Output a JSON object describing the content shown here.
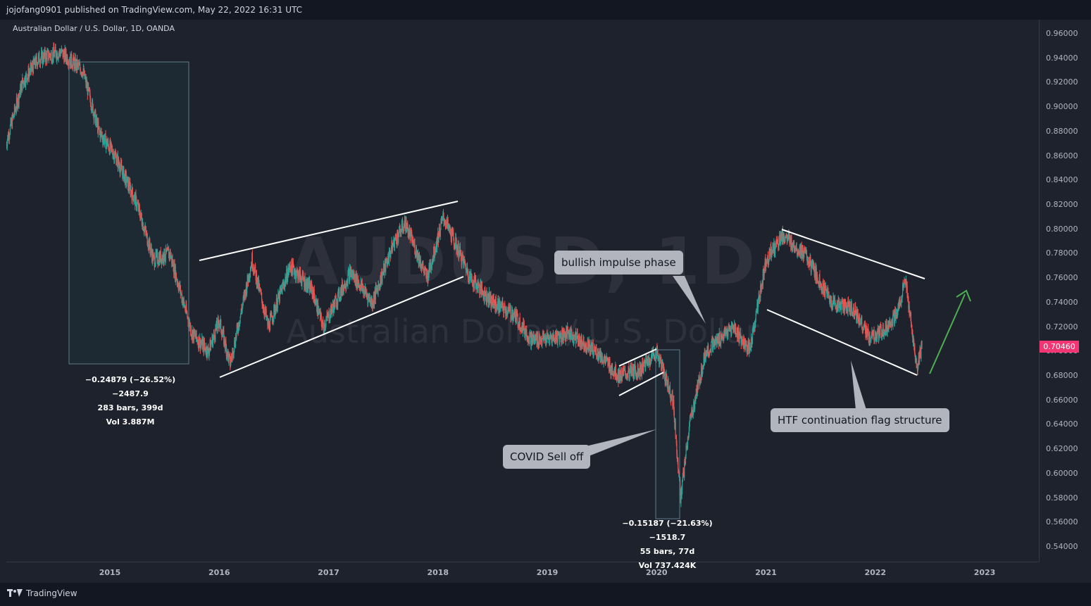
{
  "header": {
    "publisher_line": "jojofang0901 published on TradingView.com, May 22, 2022 16:31 UTC"
  },
  "chart_data": {
    "type": "candlestick",
    "title": "Australian Dollar / U.S. Dollar, 1D, OANDA",
    "watermark_symbol": "AUDUSD, 1D",
    "watermark_name": "Australian Dollar / U.S. Dollar",
    "ylim": [
      0.53,
      0.97
    ],
    "y_ticks": [
      "0.96000",
      "0.94000",
      "0.92000",
      "0.90000",
      "0.88000",
      "0.86000",
      "0.84000",
      "0.82000",
      "0.80000",
      "0.78000",
      "0.76000",
      "0.74000",
      "0.72000",
      "0.70000",
      "0.68000",
      "0.66000",
      "0.64000",
      "0.62000",
      "0.60000",
      "0.58000",
      "0.56000",
      "0.54000"
    ],
    "x_ticks": [
      "2015",
      "2016",
      "2017",
      "2018",
      "2019",
      "2020",
      "2021",
      "2022",
      "2023"
    ],
    "last_price": "0.70460",
    "colors": {
      "up": "#26a69a",
      "down": "#ef5350",
      "background": "#1e222d",
      "badge": "#f23674",
      "arrow": "#4caf50",
      "line": "#ffffff"
    },
    "price_path": [
      [
        2014.05,
        0.87
      ],
      [
        2014.2,
        0.92
      ],
      [
        2014.35,
        0.94
      ],
      [
        2014.55,
        0.945
      ],
      [
        2014.75,
        0.93
      ],
      [
        2014.9,
        0.88
      ],
      [
        2015.05,
        0.86
      ],
      [
        2015.25,
        0.82
      ],
      [
        2015.4,
        0.775
      ],
      [
        2015.55,
        0.78
      ],
      [
        2015.75,
        0.715
      ],
      [
        2015.9,
        0.7
      ],
      [
        2016.0,
        0.725
      ],
      [
        2016.1,
        0.69
      ],
      [
        2016.3,
        0.775
      ],
      [
        2016.45,
        0.72
      ],
      [
        2016.65,
        0.77
      ],
      [
        2016.85,
        0.75
      ],
      [
        2016.95,
        0.72
      ],
      [
        2017.2,
        0.765
      ],
      [
        2017.4,
        0.74
      ],
      [
        2017.6,
        0.79
      ],
      [
        2017.7,
        0.805
      ],
      [
        2017.9,
        0.76
      ],
      [
        2018.05,
        0.81
      ],
      [
        2018.3,
        0.76
      ],
      [
        2018.5,
        0.74
      ],
      [
        2018.7,
        0.73
      ],
      [
        2018.85,
        0.71
      ],
      [
        2019.0,
        0.71
      ],
      [
        2019.2,
        0.715
      ],
      [
        2019.45,
        0.7
      ],
      [
        2019.65,
        0.68
      ],
      [
        2019.85,
        0.685
      ],
      [
        2020.0,
        0.7
      ],
      [
        2020.15,
        0.66
      ],
      [
        2020.22,
        0.58
      ],
      [
        2020.3,
        0.64
      ],
      [
        2020.45,
        0.7
      ],
      [
        2020.7,
        0.72
      ],
      [
        2020.85,
        0.7
      ],
      [
        2021.0,
        0.775
      ],
      [
        2021.15,
        0.795
      ],
      [
        2021.35,
        0.78
      ],
      [
        2021.6,
        0.74
      ],
      [
        2021.8,
        0.735
      ],
      [
        2021.95,
        0.71
      ],
      [
        2022.05,
        0.715
      ],
      [
        2022.2,
        0.73
      ],
      [
        2022.27,
        0.76
      ],
      [
        2022.33,
        0.72
      ],
      [
        2022.38,
        0.685
      ],
      [
        2022.43,
        0.705
      ]
    ],
    "measure_2015": {
      "line1": "−0.24879 (−26.52%) −2487.9",
      "line2": "283 bars, 399d",
      "line3": "Vol 3.887M"
    },
    "measure_2020": {
      "line1": "−0.15187 (−21.63%) −1518.7",
      "line2": "55 bars, 77d",
      "line3": "Vol 737.424K"
    },
    "annotations": {
      "impulse": "bullish impulse phase",
      "covid": "COVID Sell off",
      "flag": "HTF continuation flag structure"
    }
  },
  "footer": {
    "brand": "TradingView"
  }
}
